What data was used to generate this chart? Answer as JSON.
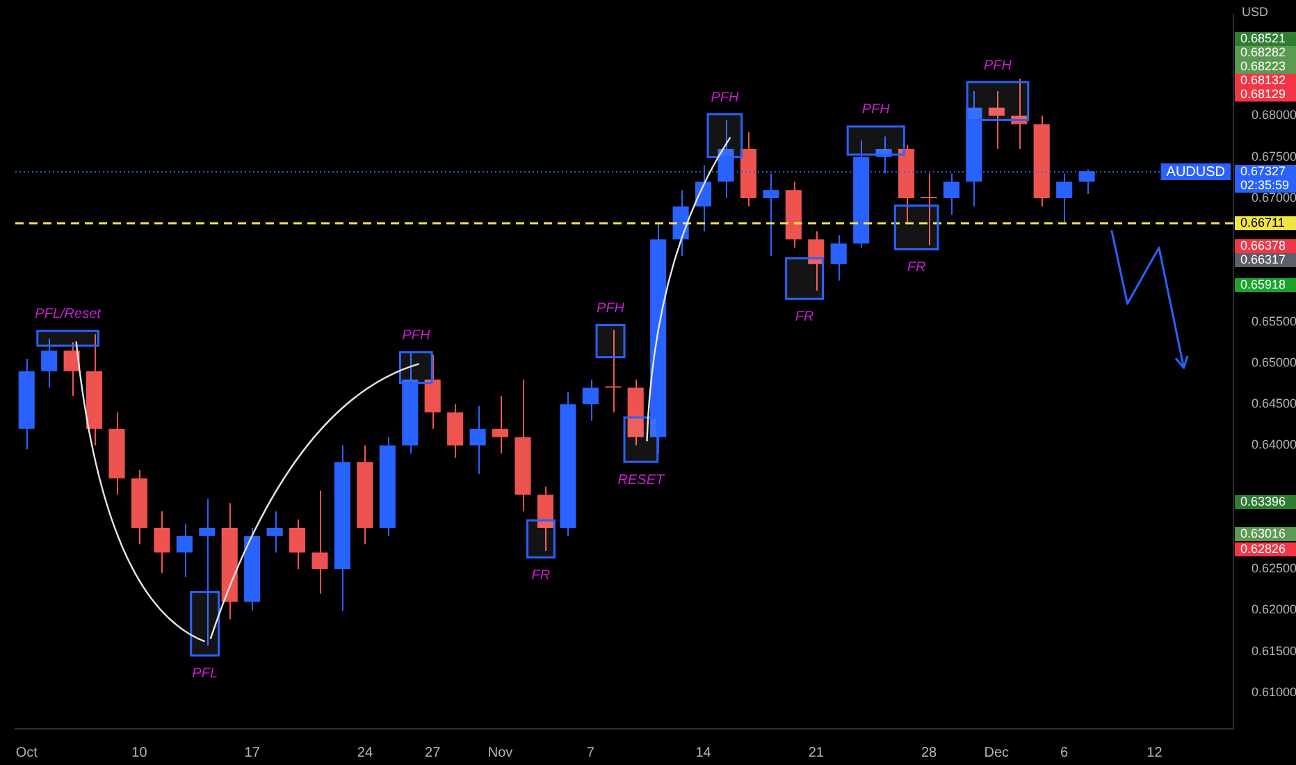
{
  "chart_data": {
    "type": "candlestick",
    "ylabel": "USD",
    "categories": [
      "Oct",
      null,
      null,
      null,
      null,
      "10",
      null,
      null,
      null,
      null,
      "17",
      null,
      null,
      null,
      null,
      "24",
      null,
      null,
      "27",
      null,
      null,
      "Nov",
      null,
      null,
      null,
      "7",
      null,
      null,
      null,
      null,
      "14",
      null,
      null,
      null,
      null,
      "21",
      null,
      null,
      null,
      null,
      "28",
      null,
      null,
      "Dec",
      null,
      null,
      "6",
      null,
      null,
      null,
      "12",
      null,
      null,
      null
    ],
    "ohlc": [
      [
        0.642,
        0.6505,
        0.6395,
        0.649
      ],
      [
        0.649,
        0.653,
        0.647,
        0.6515
      ],
      [
        0.6515,
        0.6525,
        0.646,
        0.649
      ],
      [
        0.649,
        0.6535,
        0.64,
        0.642
      ],
      [
        0.642,
        0.644,
        0.634,
        0.636
      ],
      [
        0.636,
        0.637,
        0.628,
        0.63
      ],
      [
        0.63,
        0.632,
        0.6245,
        0.627
      ],
      [
        0.627,
        0.6305,
        0.624,
        0.629
      ],
      [
        0.629,
        0.6335,
        0.6157,
        0.63
      ],
      [
        0.63,
        0.633,
        0.6189,
        0.621
      ],
      [
        0.621,
        0.63,
        0.62,
        0.629
      ],
      [
        0.629,
        0.632,
        0.627,
        0.63
      ],
      [
        0.63,
        0.631,
        0.625,
        0.627
      ],
      [
        0.627,
        0.6345,
        0.622,
        0.625
      ],
      [
        0.625,
        0.64,
        0.6199,
        0.638
      ],
      [
        0.638,
        0.64,
        0.628,
        0.63
      ],
      [
        0.63,
        0.641,
        0.629,
        0.64
      ],
      [
        0.64,
        0.6513,
        0.639,
        0.648
      ],
      [
        0.648,
        0.651,
        0.642,
        0.644
      ],
      [
        0.644,
        0.645,
        0.6385,
        0.64
      ],
      [
        0.64,
        0.6448,
        0.6365,
        0.642
      ],
      [
        0.642,
        0.646,
        0.639,
        0.641
      ],
      [
        0.641,
        0.648,
        0.632,
        0.634
      ],
      [
        0.634,
        0.635,
        0.6272,
        0.63
      ],
      [
        0.63,
        0.6465,
        0.629,
        0.645
      ],
      [
        0.645,
        0.648,
        0.643,
        0.647
      ],
      [
        0.647,
        0.654,
        0.644,
        0.647
      ],
      [
        0.647,
        0.648,
        0.64,
        0.641
      ],
      [
        0.641,
        0.667,
        0.639,
        0.665
      ],
      [
        0.665,
        0.671,
        0.663,
        0.669
      ],
      [
        0.669,
        0.674,
        0.666,
        0.672
      ],
      [
        0.672,
        0.6795,
        0.67,
        0.676
      ],
      [
        0.676,
        0.678,
        0.669,
        0.67
      ],
      [
        0.67,
        0.673,
        0.663,
        0.671
      ],
      [
        0.671,
        0.672,
        0.664,
        0.665
      ],
      [
        0.665,
        0.666,
        0.6588,
        0.662
      ],
      [
        0.662,
        0.6655,
        0.66,
        0.6645
      ],
      [
        0.6645,
        0.677,
        0.664,
        0.675
      ],
      [
        0.675,
        0.6775,
        0.673,
        0.676
      ],
      [
        0.676,
        0.6765,
        0.667,
        0.67
      ],
      [
        0.67,
        0.673,
        0.6643,
        0.67
      ],
      [
        0.67,
        0.673,
        0.668,
        0.672
      ],
      [
        0.672,
        0.683,
        0.669,
        0.681
      ],
      [
        0.681,
        0.683,
        0.676,
        0.68
      ],
      [
        0.68,
        0.6845,
        0.676,
        0.679
      ],
      [
        0.679,
        0.68,
        0.669,
        0.67
      ],
      [
        0.67,
        0.673,
        0.6669,
        0.672
      ],
      [
        0.672,
        0.6735,
        0.6705,
        0.67327
      ],
      null,
      null,
      null,
      null,
      null,
      null
    ],
    "colors": [
      "#2962ff",
      "#2962ff",
      "#ef5350",
      "#ef5350",
      "#ef5350",
      "#ef5350",
      "#ef5350",
      "#2962ff",
      "#2962ff",
      "#ef5350",
      "#2962ff",
      "#2962ff",
      "#ef5350",
      "#ef5350",
      "#2962ff",
      "#ef5350",
      "#2962ff",
      "#2962ff",
      "#ef5350",
      "#ef5350",
      "#2962ff",
      "#ef5350",
      "#ef5350",
      "#ef5350",
      "#2962ff",
      "#2962ff",
      "#ef5350",
      "#ef5350",
      "#2962ff",
      "#2962ff",
      "#2962ff",
      "#2962ff",
      "#ef5350",
      "#2962ff",
      "#ef5350",
      "#ef5350",
      "#2962ff",
      "#2962ff",
      "#2962ff",
      "#ef5350",
      "#ef5350",
      "#2962ff",
      "#2962ff",
      "#ef5350",
      "#ef5350",
      "#ef5350",
      "#2962ff",
      "#2962ff",
      null,
      null,
      null,
      null,
      null,
      null
    ],
    "ylim": [
      0.6056,
      0.6923
    ],
    "yticks": [
      {
        "value": 0.61,
        "label": "0.61000"
      },
      {
        "value": 0.615,
        "label": "0.61500"
      },
      {
        "value": 0.62,
        "label": "0.62000"
      },
      {
        "value": 0.625,
        "label": "0.62500"
      },
      {
        "value": 0.64,
        "label": "0.64000"
      },
      {
        "value": 0.645,
        "label": "0.64500"
      },
      {
        "value": 0.65,
        "label": "0.65000"
      },
      {
        "value": 0.655,
        "label": "0.65500"
      },
      {
        "value": 0.67,
        "label": "0.67000"
      },
      {
        "value": 0.675,
        "label": "0.67500"
      },
      {
        "value": 0.68,
        "label": "0.68000"
      }
    ],
    "ref_lines": [
      {
        "axis": "y",
        "value": 0.67327,
        "label": "AUDUSD",
        "color": "#2962ff",
        "line_style": "dotted"
      },
      {
        "axis": "y",
        "value": 0.66711,
        "color": "#f0e442",
        "line_style": "dashed"
      }
    ],
    "annotations": [
      "PFL/Reset",
      "PFL",
      "PFH",
      "FR",
      "PFH",
      "RESET",
      "PFH",
      "FR",
      "PFH",
      "FR",
      "PFH",
      "0.68521",
      "0.68282",
      "0.68223",
      "0.68132",
      "0.68129",
      "0.67327",
      "02:35:59",
      "0.66711",
      "0.66378",
      "0.66317",
      "0.65918",
      "0.63396",
      "0.63016",
      "0.62826"
    ]
  }
}
